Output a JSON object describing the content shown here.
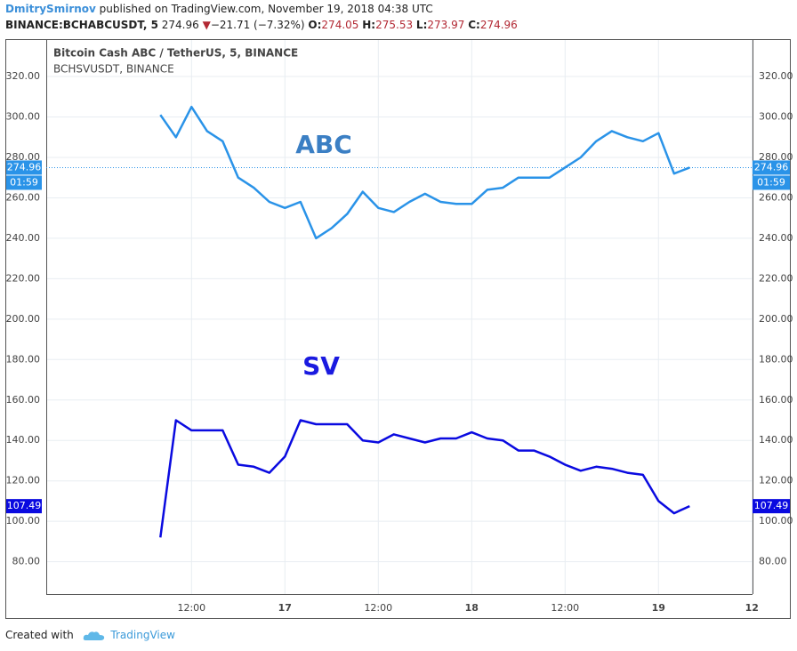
{
  "header": {
    "author": "DmitrySmirnov",
    "published": "published on TradingView.com, November 19, 2018 04:38 UTC",
    "symbol": "BINANCE:BCHABCUSDT, 5",
    "close": 274.96,
    "change": "−21.71 (−7.32%)",
    "ohlc": [
      {
        "key": "O:",
        "value": 274.05
      },
      {
        "key": "H:",
        "value": 275.53
      },
      {
        "key": "L:",
        "value": 273.97
      },
      {
        "key": "C:",
        "value": 274.96
      }
    ]
  },
  "chart_data": {
    "type": "line",
    "x": [
      "2018-11-16T08:00",
      "2018-11-16T10:00",
      "2018-11-16T12:00",
      "2018-11-16T14:00",
      "2018-11-16T16:00",
      "2018-11-16T18:00",
      "2018-11-16T20:00",
      "2018-11-16T22:00",
      "2018-11-17T00:00",
      "2018-11-17T02:00",
      "2018-11-17T04:00",
      "2018-11-17T06:00",
      "2018-11-17T08:00",
      "2018-11-17T10:00",
      "2018-11-17T12:00",
      "2018-11-17T14:00",
      "2018-11-17T16:00",
      "2018-11-17T18:00",
      "2018-11-17T20:00",
      "2018-11-17T22:00",
      "2018-11-18T00:00",
      "2018-11-18T02:00",
      "2018-11-18T04:00",
      "2018-11-18T06:00",
      "2018-11-18T08:00",
      "2018-11-18T10:00",
      "2018-11-18T12:00",
      "2018-11-18T14:00",
      "2018-11-18T16:00",
      "2018-11-18T18:00",
      "2018-11-18T20:00",
      "2018-11-18T22:00",
      "2018-11-19T00:00",
      "2018-11-19T02:00",
      "2018-11-19T04:00"
    ],
    "series": [
      {
        "name": "Bitcoin Cash ABC / TetherUS, 5, BINANCE",
        "color": "#2a93e8",
        "tag_color": "#2a93e8",
        "price_tag": 274.96,
        "countdown": "01:59",
        "values": [
          301,
          290,
          305,
          293,
          288,
          270,
          265,
          258,
          255,
          258,
          240,
          245,
          252,
          263,
          255,
          253,
          258,
          262,
          258,
          257,
          257,
          264,
          265,
          270,
          270,
          270,
          275,
          280,
          288,
          293,
          290,
          288,
          292,
          272,
          274.96
        ]
      },
      {
        "name": "BCHSVUSDT, BINANCE",
        "color": "#0a0ae0",
        "tag_color": "#0a0ae0",
        "price_tag": 107.49,
        "values": [
          92,
          150,
          145,
          145,
          145,
          128,
          127,
          124,
          132,
          150,
          148,
          148,
          148,
          140,
          139,
          143,
          141,
          139,
          141,
          141,
          144,
          141,
          140,
          135,
          135,
          132,
          128,
          125,
          127,
          126,
          124,
          123,
          110,
          104,
          107.49
        ]
      }
    ],
    "annotations": [
      {
        "text": "ABC",
        "color": "#3b7fc4"
      },
      {
        "text": "SV",
        "color": "#1a1ae0"
      }
    ],
    "xlim": [
      "2018-11-15T17:20",
      "2018-11-19T12:05"
    ],
    "xticks": [
      {
        "value": "2018-11-16T12:00",
        "label": "12:00"
      },
      {
        "value": "2018-11-17T00:00",
        "label": "17"
      },
      {
        "value": "2018-11-17T12:00",
        "label": "12:00"
      },
      {
        "value": "2018-11-18T00:00",
        "label": "18"
      },
      {
        "value": "2018-11-18T12:00",
        "label": "12:00"
      },
      {
        "value": "2018-11-19T00:00",
        "label": "19"
      },
      {
        "value": "2018-11-19T12:00",
        "label": "12"
      }
    ],
    "ylim": [
      64,
      338.5
    ],
    "yticks": [
      {
        "value": 80,
        "label": "80.00"
      },
      {
        "value": 100,
        "label": "100.00"
      },
      {
        "value": 120,
        "label": "120.00"
      },
      {
        "value": 140,
        "label": "140.00"
      },
      {
        "value": 160,
        "label": "160.00"
      },
      {
        "value": 180,
        "label": "180.00"
      },
      {
        "value": 200,
        "label": "200.00"
      },
      {
        "value": 220,
        "label": "220.00"
      },
      {
        "value": 240,
        "label": "240.00"
      },
      {
        "value": 260,
        "label": "260.00"
      },
      {
        "value": 280,
        "label": "280.00"
      },
      {
        "value": 300,
        "label": "300.00"
      },
      {
        "value": 320,
        "label": "320.00"
      }
    ],
    "grid": true
  },
  "footer": {
    "created": "Created with",
    "brand": "TradingView"
  }
}
